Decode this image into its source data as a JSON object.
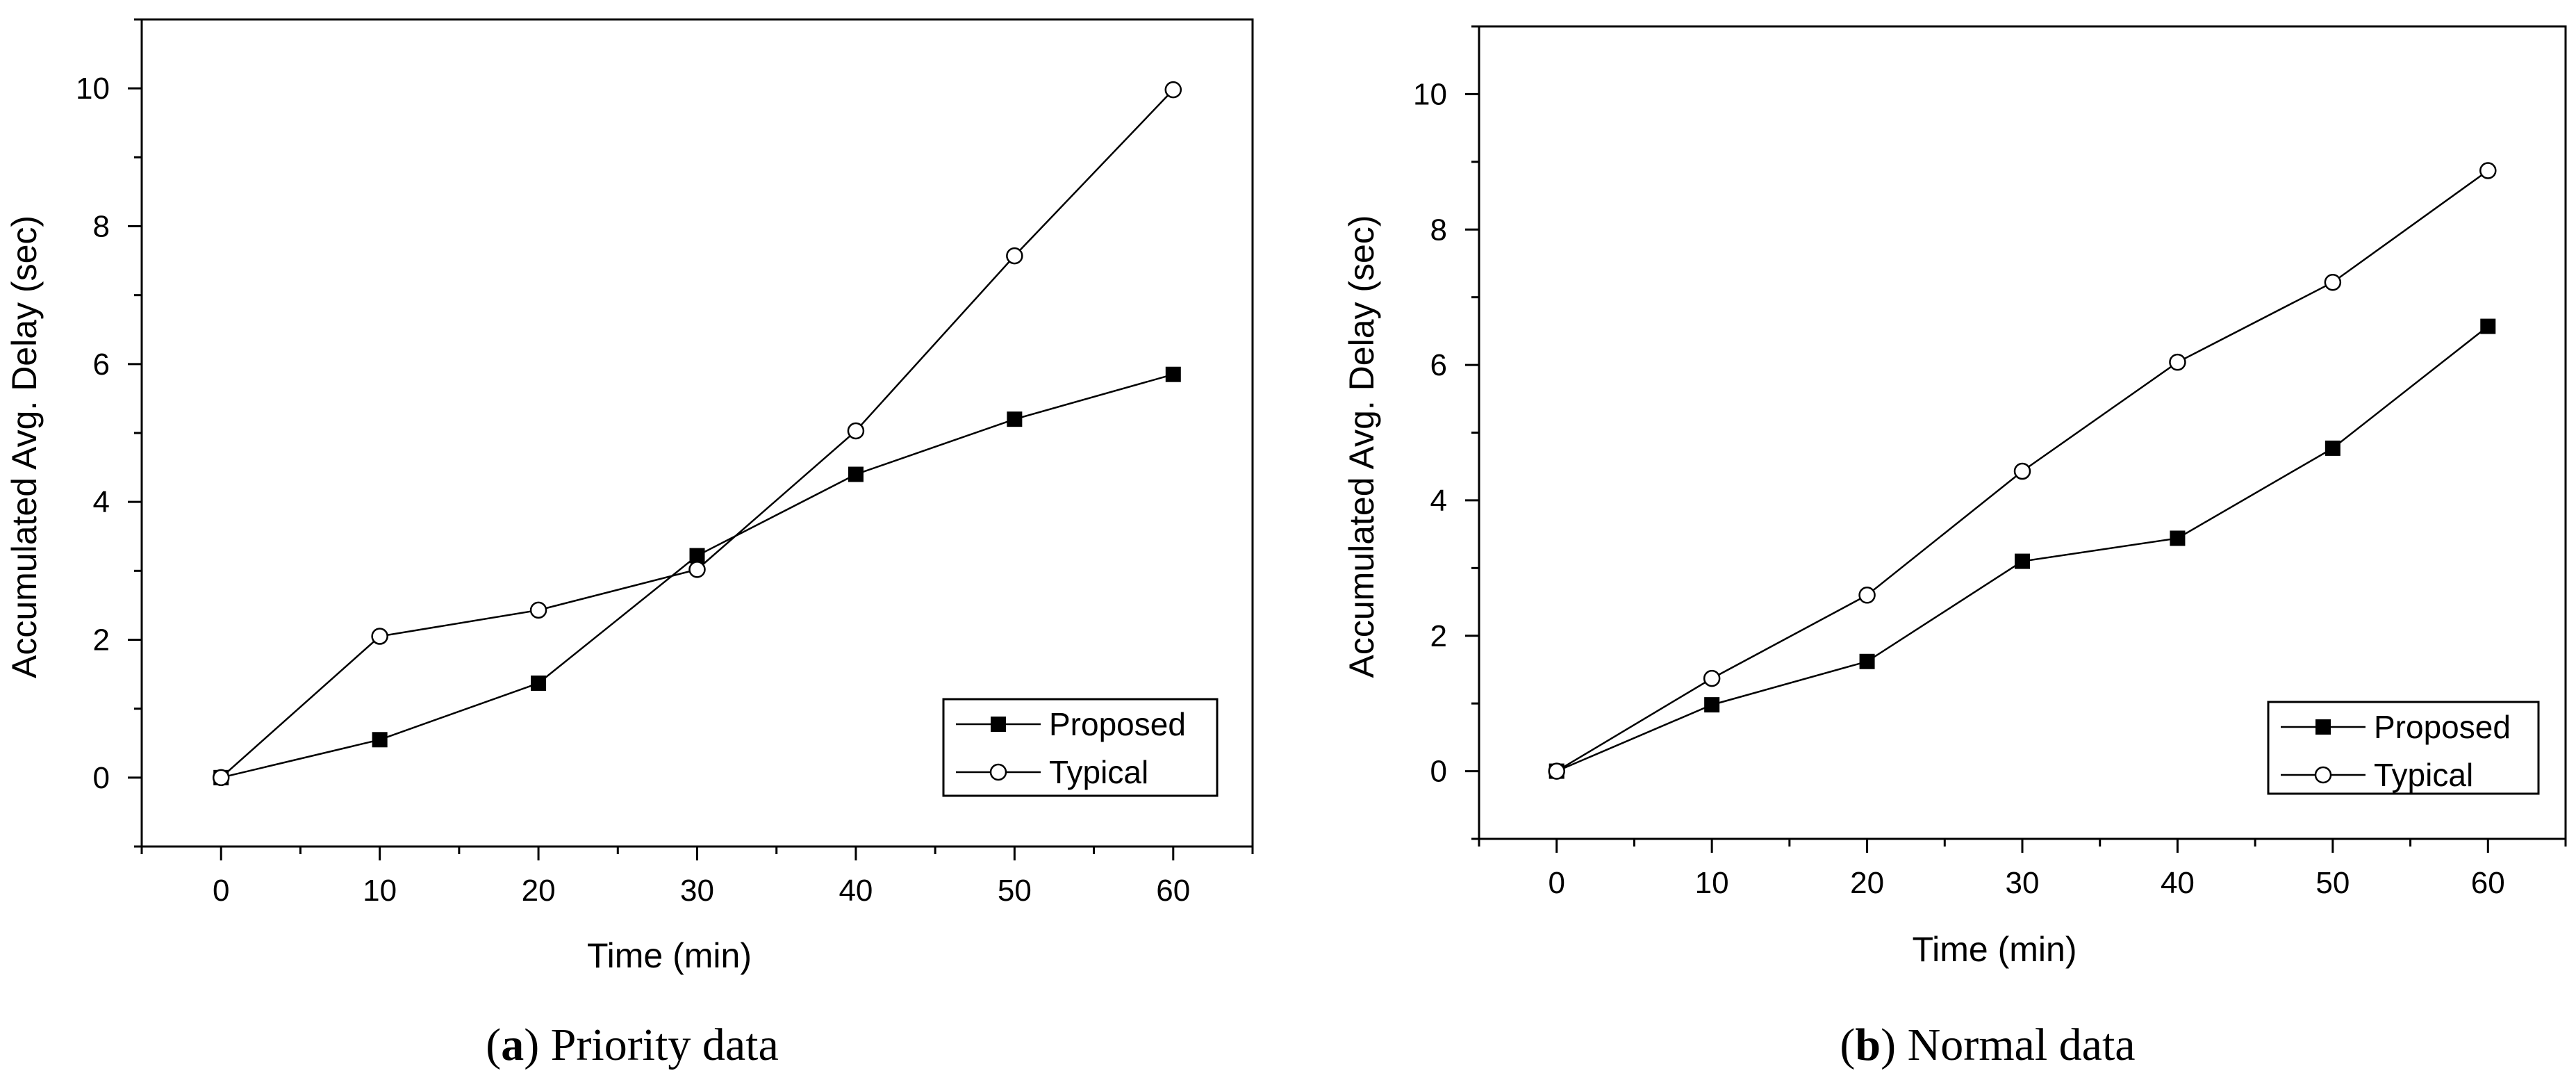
{
  "chart_data": [
    {
      "type": "line",
      "panel_label": "a",
      "caption": "Priority data",
      "xlabel": "Time (min)",
      "ylabel": "Accumulated Avg. Delay (sec)",
      "xlim": [
        -5,
        65
      ],
      "ylim": [
        -1,
        11
      ],
      "xticks": [
        0,
        10,
        20,
        30,
        40,
        50,
        60
      ],
      "yticks": [
        0,
        2,
        4,
        6,
        8,
        10
      ],
      "x": [
        0,
        10,
        20,
        30,
        40,
        50,
        60
      ],
      "legend_position": "bottom-right",
      "series": [
        {
          "name": "Proposed",
          "marker": "filled-square",
          "values": [
            0,
            0.55,
            1.37,
            3.22,
            4.4,
            5.2,
            5.85
          ]
        },
        {
          "name": "Typical",
          "marker": "open-circle",
          "values": [
            0,
            2.05,
            2.43,
            3.02,
            5.03,
            7.57,
            9.98
          ]
        }
      ]
    },
    {
      "type": "line",
      "panel_label": "b",
      "caption": "Normal data",
      "xlabel": "Time (min)",
      "ylabel": "Accumulated Avg. Delay (sec)",
      "xlim": [
        -5,
        65
      ],
      "ylim": [
        -1,
        11
      ],
      "xticks": [
        0,
        10,
        20,
        30,
        40,
        50,
        60
      ],
      "yticks": [
        0,
        2,
        4,
        6,
        8,
        10
      ],
      "x": [
        0,
        10,
        20,
        30,
        40,
        50,
        60
      ],
      "legend_position": "bottom-right",
      "series": [
        {
          "name": "Proposed",
          "marker": "filled-square",
          "values": [
            0,
            0.98,
            1.62,
            3.1,
            3.44,
            4.77,
            6.57
          ]
        },
        {
          "name": "Typical",
          "marker": "open-circle",
          "values": [
            0,
            1.37,
            2.6,
            4.43,
            6.04,
            7.22,
            8.87
          ]
        }
      ]
    }
  ]
}
